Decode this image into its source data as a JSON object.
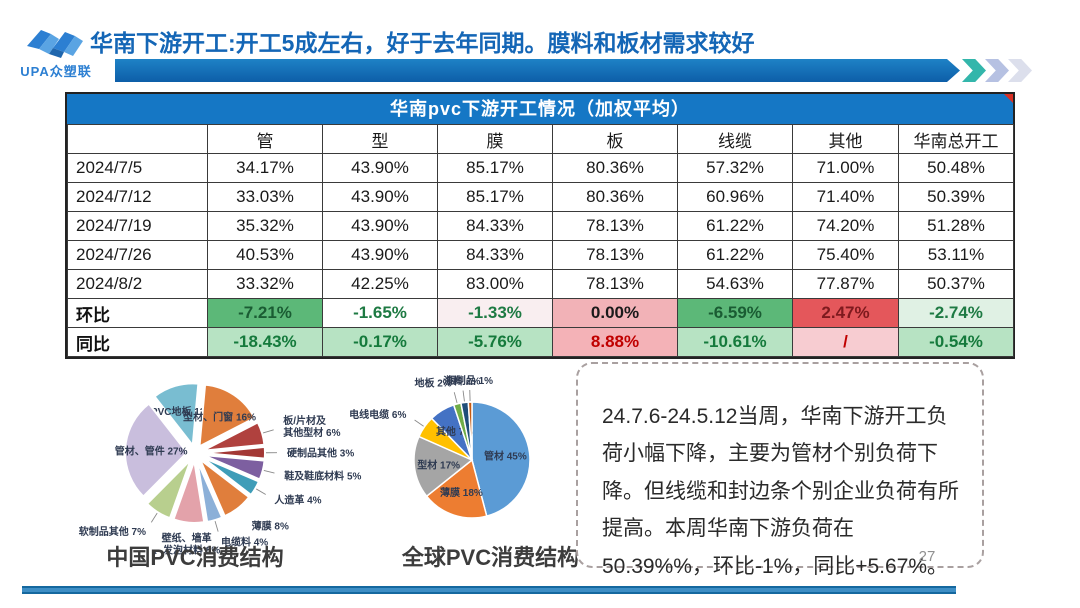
{
  "header": {
    "logo_text": "UPA众塑联",
    "title": "华南下游开工:开工5成左右，好于去年同期。膜料和板材需求较好"
  },
  "colors": {
    "accent_blue": "#1466b6",
    "table_header_blue": "#1577c5",
    "chevron_teal": "#33b6ab",
    "gain_red_strong": "#e4575b",
    "gain_red_light": "#f4b2b7",
    "drop_green_strong": "#5cb878",
    "drop_green_light": "#b7e3c3"
  },
  "table": {
    "title": "华南pvc下游开工情况（加权平均）",
    "columns": [
      "",
      "管",
      "型",
      "膜",
      "板",
      "线缆",
      "其他",
      "华南总开工"
    ],
    "rows": [
      {
        "label": "2024/7/5",
        "values": [
          "34.17%",
          "43.90%",
          "85.17%",
          "80.36%",
          "57.32%",
          "71.00%",
          "50.48%"
        ]
      },
      {
        "label": "2024/7/12",
        "values": [
          "33.03%",
          "43.90%",
          "85.17%",
          "80.36%",
          "60.96%",
          "71.40%",
          "50.39%"
        ]
      },
      {
        "label": "2024/7/19",
        "values": [
          "35.32%",
          "43.90%",
          "84.33%",
          "78.13%",
          "61.22%",
          "74.20%",
          "51.28%"
        ]
      },
      {
        "label": "2024/7/26",
        "values": [
          "40.53%",
          "43.90%",
          "84.33%",
          "78.13%",
          "61.22%",
          "75.40%",
          "53.11%"
        ]
      },
      {
        "label": "2024/8/2",
        "values": [
          "33.32%",
          "42.25%",
          "83.00%",
          "78.13%",
          "54.63%",
          "77.87%",
          "50.37%"
        ]
      }
    ],
    "summary_rows": [
      {
        "label": "环比",
        "cells": [
          {
            "text": "-7.21%",
            "bg": "#5cb878",
            "fg": "#1a5c33"
          },
          {
            "text": "-1.65%",
            "bg": "#ffffff",
            "fg": "#1e7a43"
          },
          {
            "text": "-1.33%",
            "bg": "#f9eef0",
            "fg": "#1e7a43"
          },
          {
            "text": "0.00%",
            "bg": "#f2b2b7",
            "fg": "#1a1a1a"
          },
          {
            "text": "-6.59%",
            "bg": "#5cb878",
            "fg": "#1a5c33"
          },
          {
            "text": "2.47%",
            "bg": "#e4575b",
            "fg": "#7e1a1e"
          },
          {
            "text": "-2.74%",
            "bg": "#e0f1e4",
            "fg": "#1e7a43"
          }
        ]
      },
      {
        "label": "同比",
        "cells": [
          {
            "text": "-18.43%",
            "bg": "#b7e3c3",
            "fg": "#157a3c"
          },
          {
            "text": "-0.17%",
            "bg": "#b7e3c3",
            "fg": "#157a3c"
          },
          {
            "text": "-5.76%",
            "bg": "#b7e3c3",
            "fg": "#157a3c"
          },
          {
            "text": "8.88%",
            "bg": "#f4b2b7",
            "fg": "#c00000"
          },
          {
            "text": "-10.61%",
            "bg": "#b7e3c3",
            "fg": "#157a3c"
          },
          {
            "text": "/",
            "bg": "#f7ccd1",
            "fg": "#c00000"
          },
          {
            "text": "-0.54%",
            "bg": "#b7e3c3",
            "fg": "#157a3c"
          }
        ]
      }
    ]
  },
  "chart_data": [
    {
      "type": "pie",
      "title": "中国PVC消费结构",
      "exploded": true,
      "start_angle": -38,
      "legend_position": "none",
      "slices": [
        {
          "name": "PVC地板",
          "value": 12,
          "color": "#79bdd1",
          "label_inside": true
        },
        {
          "name": "型材、门窗",
          "value": 16,
          "color": "#e07e3c",
          "label_inside": true
        },
        {
          "name": "板/片材及其他型材",
          "value": 6,
          "color": "#b0413e"
        },
        {
          "name": "硬制品其他",
          "value": 3,
          "color": "#a33835"
        },
        {
          "name": "鞋及鞋底材料",
          "value": 5,
          "color": "#7d5fa0"
        },
        {
          "name": "人造革",
          "value": 4,
          "color": "#3f9db8"
        },
        {
          "name": "薄膜",
          "value": 8,
          "color": "#e07e3c"
        },
        {
          "name": "电缆料",
          "value": 4,
          "color": "#8cb0d8"
        },
        {
          "name": "壁纸、墙革、发泡材料",
          "value": 8,
          "color": "#e3a2aa"
        },
        {
          "name": "软制品其他",
          "value": 7,
          "color": "#b8cf8e"
        },
        {
          "name": "管材、管件",
          "value": 27,
          "color": "#c9bedd",
          "label_inside": true
        }
      ]
    },
    {
      "type": "pie",
      "title": "全球PVC消费结构",
      "exploded": false,
      "start_angle": 0,
      "legend_position": "none",
      "slices": [
        {
          "name": "管材",
          "value": 45,
          "color": "#5b9bd5",
          "label_inside": true
        },
        {
          "name": "薄膜",
          "value": 18,
          "color": "#ed7d31",
          "label_inside": true
        },
        {
          "name": "型材",
          "value": 17,
          "color": "#a5a5a5",
          "label_inside": true
        },
        {
          "name": "电线电缆",
          "value": 6,
          "color": "#ffc000"
        },
        {
          "name": "其他",
          "value": 7,
          "color": "#4472c4",
          "label_inside": true
        },
        {
          "name": "地板",
          "value": 2,
          "color": "#70ad47"
        },
        {
          "name": "涂料",
          "value": 2,
          "color": "#1f4e79"
        },
        {
          "name": "瓶制品",
          "value": 1,
          "color": "#c55a11"
        }
      ]
    }
  ],
  "note": {
    "text": "24.7.6-24.5.12当周，华南下游开工负荷小幅下降，主要为管材个别负荷下降。但线缆和封边条个别企业负荷有所提高。本周华南下游负荷在50.39%%，环比-1%，同比+5.67%。"
  },
  "page_number": "27"
}
